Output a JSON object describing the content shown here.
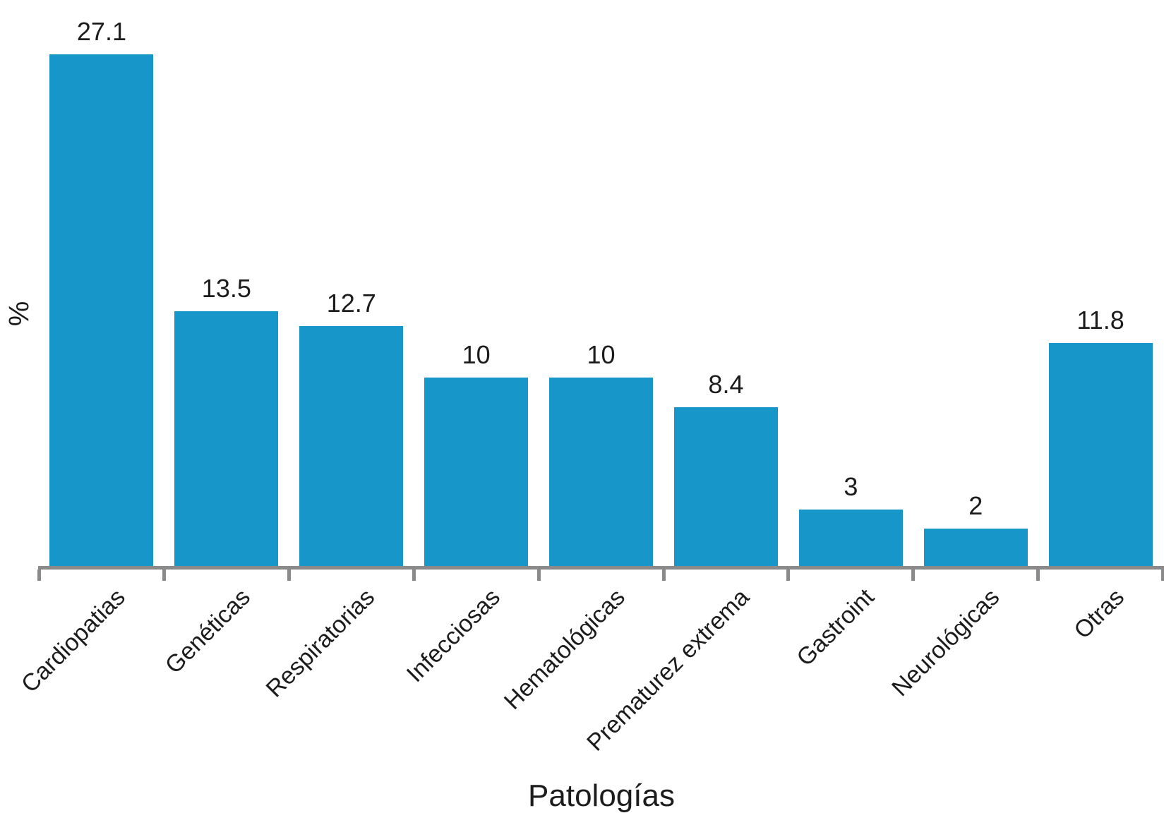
{
  "chart_data": {
    "type": "bar",
    "title": "",
    "xlabel": "Patologías",
    "ylabel": "%",
    "categories": [
      "Cardiopatias",
      "Genéticas",
      "Respiratorias",
      "Infecciosas",
      "Hematológicas",
      "Prematurez extrema",
      "Gastroint",
      "Neurológicas",
      "Otras"
    ],
    "values": [
      27.1,
      13.5,
      12.7,
      10,
      10,
      8.4,
      3,
      2,
      11.8
    ],
    "value_labels": [
      "27.1",
      "13.5",
      "12.7",
      "10",
      "10",
      "8.4",
      "3",
      "2",
      "11.8"
    ],
    "ylim": [
      0,
      28
    ],
    "grid": false,
    "legend": null,
    "x_tick_rotation_deg": 45,
    "bar_color": "#1797c9",
    "axis_color": "#8a8a8a",
    "label_color": "#1c1c1c"
  }
}
